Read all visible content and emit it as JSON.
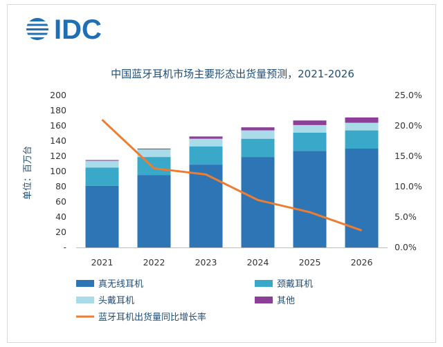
{
  "brand": {
    "logo_text": "IDC",
    "logo_color": "#1f6fb5"
  },
  "chart_data": {
    "type": "bar",
    "title": "中国蓝牙耳机市场主要形态出货量预测，2021-2026",
    "ylabel": "单位：百万台",
    "categories": [
      "2021",
      "2022",
      "2023",
      "2024",
      "2025",
      "2026"
    ],
    "stacked": true,
    "ylim": [
      0,
      200
    ],
    "y_ticks": [
      "-",
      "20",
      "40",
      "60",
      "80",
      "100",
      "120",
      "140",
      "160",
      "180",
      "200"
    ],
    "y2lim": [
      0,
      25
    ],
    "y2_ticks": [
      "0.0%",
      "5.0%",
      "10.0%",
      "15.0%",
      "20.0%",
      "25.0%"
    ],
    "series": [
      {
        "name": "真无线耳机",
        "color": "#2e75b6",
        "values": [
          81,
          95,
          109,
          119,
          127,
          130
        ]
      },
      {
        "name": "颈戴耳机",
        "color": "#3aa8c8",
        "values": [
          24,
          24,
          24,
          24,
          24,
          24
        ]
      },
      {
        "name": "头戴耳机",
        "color": "#a9dbe8",
        "values": [
          9,
          10,
          10,
          11,
          10,
          10
        ]
      },
      {
        "name": "其他",
        "color": "#8b3f97",
        "values": [
          1,
          1,
          3,
          4,
          6,
          7
        ]
      }
    ],
    "line_series": {
      "name": "蓝牙耳机出货量同比增长率",
      "color": "#ed7d31",
      "axis": "right",
      "values": [
        21.0,
        13.0,
        12.0,
        7.8,
        5.8,
        2.8
      ]
    },
    "legend_position": "bottom",
    "grid": false
  }
}
